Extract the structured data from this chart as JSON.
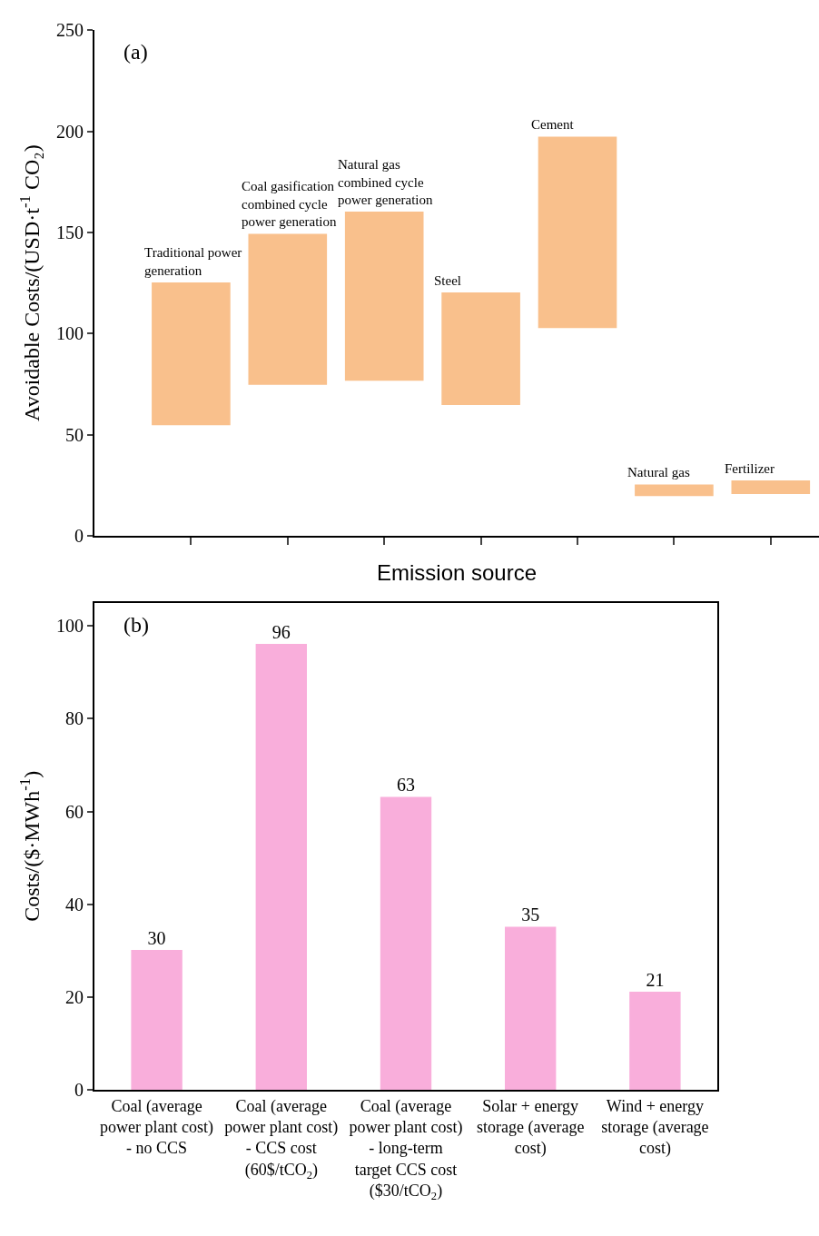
{
  "chart_data": [
    {
      "type": "bar",
      "annotations": [
        "(a)"
      ],
      "xlabel": "Emission source",
      "ylabel": "Avoidable Costs/(USD·t$^{-1}$ CO₂)",
      "categories": [
        "Traditional power generation",
        "Coal gasification combined cycle power generation",
        "Natural gas combined cycle power generation",
        "Steel",
        "Cement",
        "Natural gas",
        "Fertilizer"
      ],
      "base": [
        55,
        75,
        77,
        65,
        103,
        20,
        21
      ],
      "values": [
        70,
        74,
        83,
        55,
        94,
        5,
        6
      ],
      "color": "#f9c08c",
      "ylim": [
        0,
        250
      ],
      "yticks": [
        0,
        50,
        100,
        150,
        200,
        250
      ],
      "tick_labels": "y"
    },
    {
      "type": "bar",
      "annotations": [
        "(b)"
      ],
      "ylabel": "Costs/($·MWh$^{-1}$)",
      "categories": [
        "Coal (average power plant cost) - no CCS",
        "Coal (average power plant cost) - CCS cost (60$/tCO$_{2}$)",
        "Coal (average power plant cost) - long-term target CCS cost ($30/tCO$_{2}$)",
        "Solar + energy storage (average cost)",
        "Wind + energy storage (average cost)"
      ],
      "values": [
        30,
        96,
        63,
        35,
        21
      ],
      "color": "#f9aedb",
      "ylim": [
        0,
        105
      ],
      "yticks": [
        0,
        20,
        40,
        60,
        80,
        100
      ],
      "data_labels": true
    }
  ]
}
